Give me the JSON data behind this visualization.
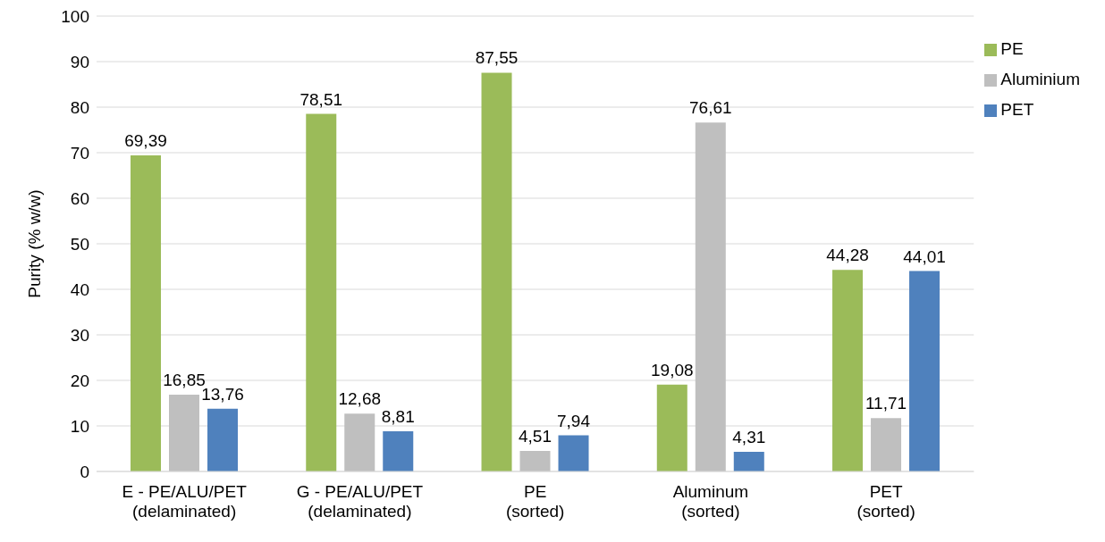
{
  "chart_data": {
    "type": "bar",
    "ylabel": "Purity (% w/w)",
    "categories": [
      "E - PE/ALU/PET\n(delaminated)",
      "G - PE/ALU/PET\n(delaminated)",
      "PE\n(sorted)",
      "Aluminum\n(sorted)",
      "PET\n(sorted)"
    ],
    "series": [
      {
        "name": "PE",
        "color": "#9bbb59",
        "values": [
          69.39,
          78.51,
          87.55,
          19.08,
          44.28
        ],
        "value_labels": [
          "69,39",
          "78,51",
          "87,55",
          "19,08",
          "44,28"
        ]
      },
      {
        "name": "Aluminium",
        "color": "#bfbfbf",
        "values": [
          16.85,
          12.68,
          4.51,
          76.61,
          11.71
        ],
        "value_labels": [
          "16,85",
          "12,68",
          "4,51",
          "76,61",
          "11,71"
        ]
      },
      {
        "name": "PET",
        "color": "#4f81bd",
        "values": [
          13.76,
          8.81,
          7.94,
          4.31,
          44.01
        ],
        "value_labels": [
          "13,76",
          "8,81",
          "7,94",
          "4,31",
          "44,01"
        ]
      }
    ],
    "ylim": [
      0,
      100
    ],
    "yticks": [
      0,
      10,
      20,
      30,
      40,
      50,
      60,
      70,
      80,
      90,
      100
    ],
    "grid": "y",
    "legend": "top right"
  }
}
